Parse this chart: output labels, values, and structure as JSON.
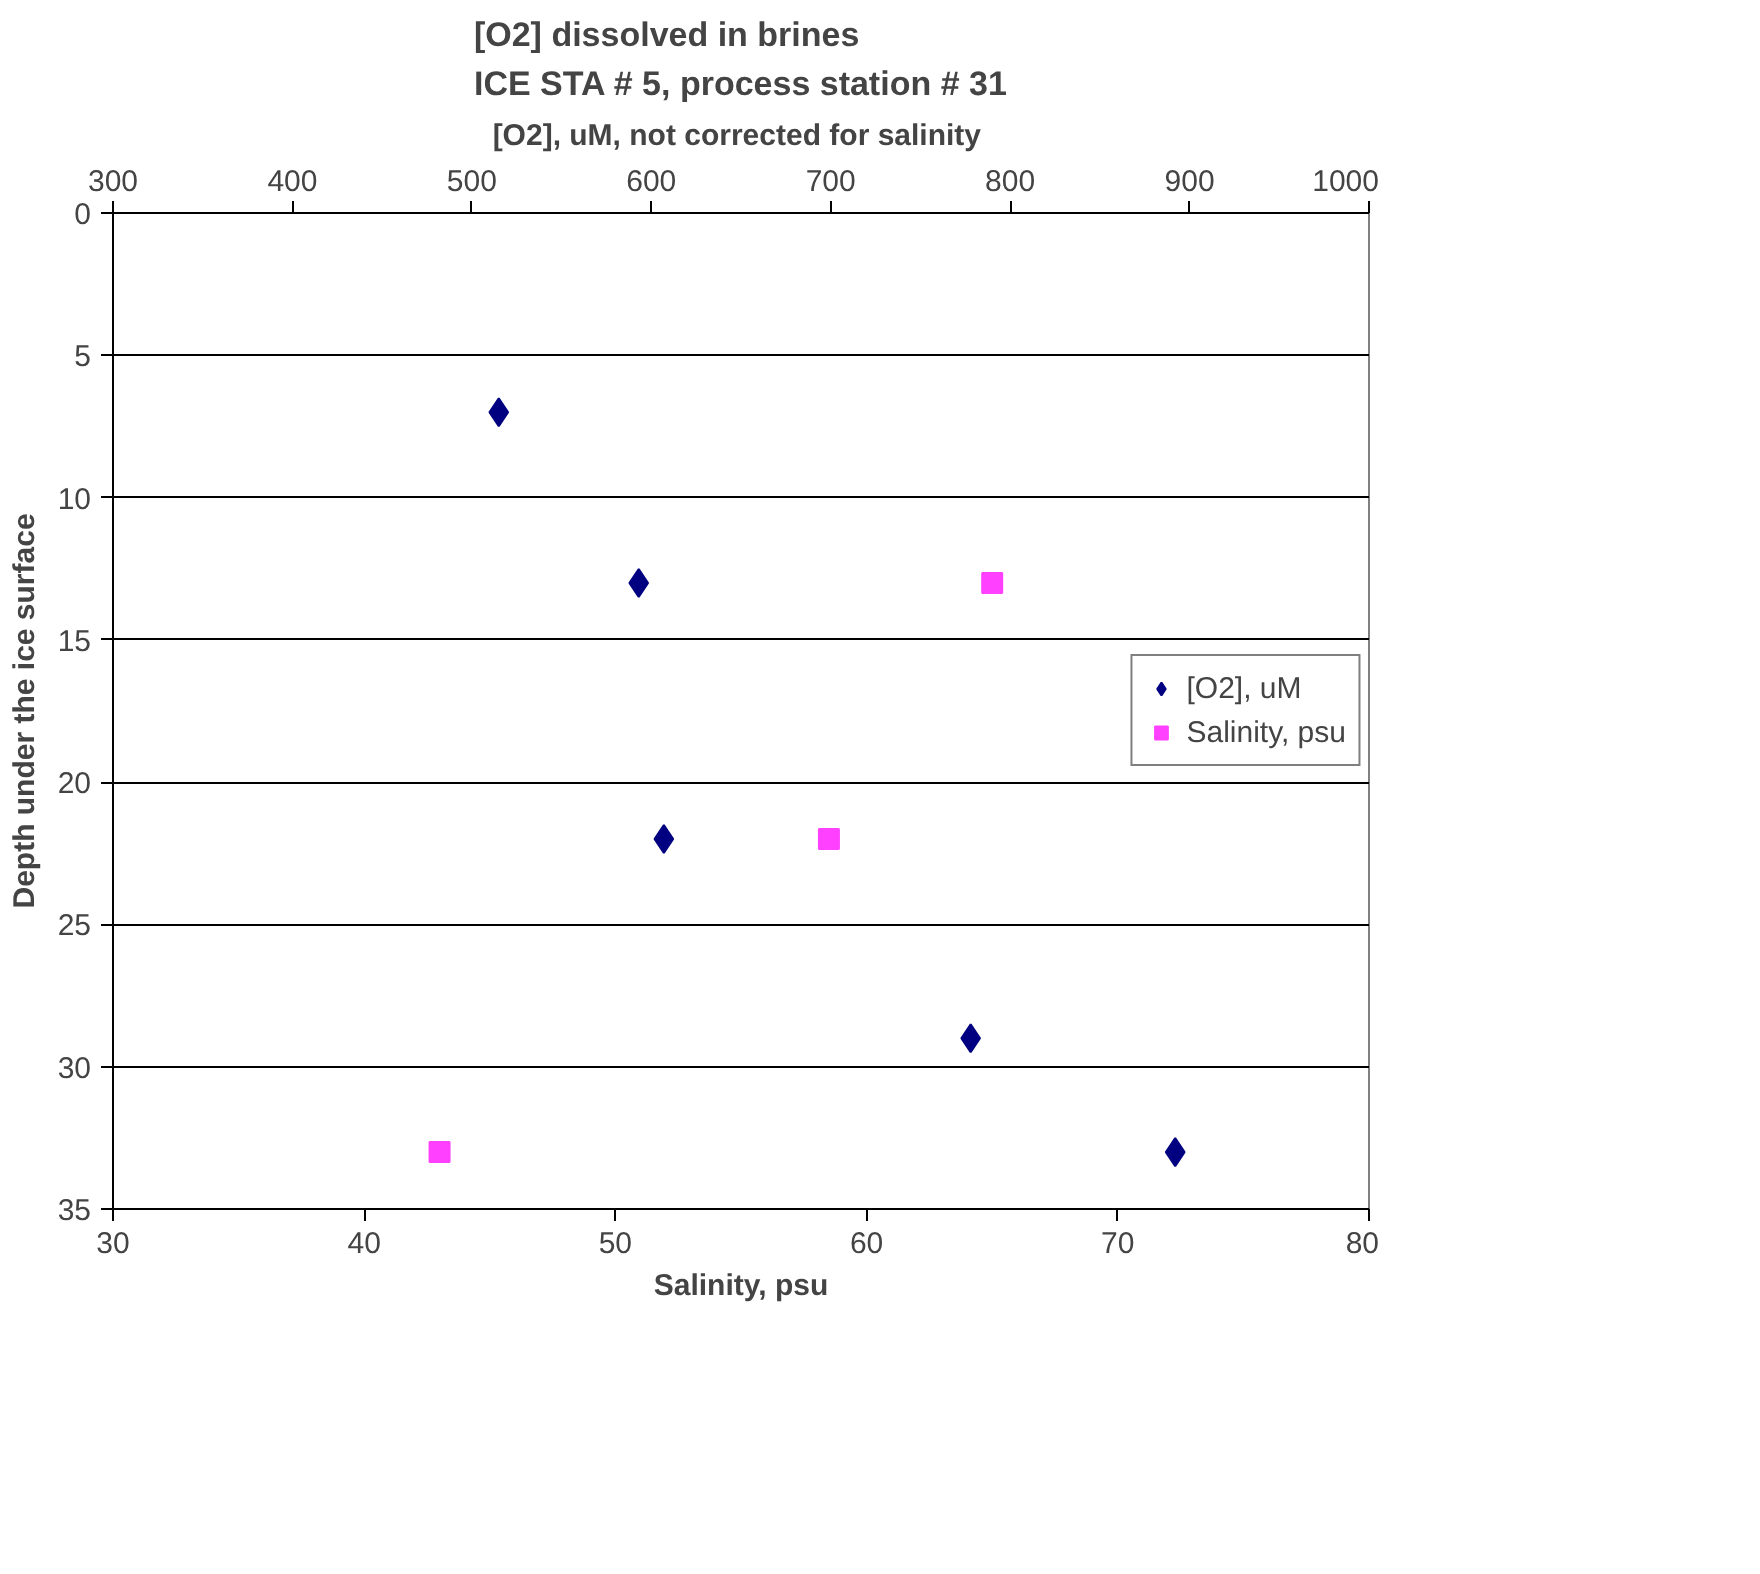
{
  "chart_data": {
    "type": "scatter",
    "title": "[O2] dissolved in brines\nICE STA # 5, process station # 31",
    "xlabel": "Salinity, psu",
    "x2label": "[O2], uM,  not corrected for salinity",
    "ylabel": "Depth under the ice surface",
    "xlim": [
      30,
      80
    ],
    "xticks": [
      30,
      40,
      50,
      60,
      70,
      80
    ],
    "x2lim": [
      300,
      1000
    ],
    "x2ticks": [
      300,
      400,
      500,
      600,
      700,
      800,
      900,
      1000
    ],
    "ylim": [
      35,
      0
    ],
    "yticks": [
      0,
      5,
      10,
      15,
      20,
      25,
      30,
      35
    ],
    "grid": "y",
    "legend": "right",
    "series": [
      {
        "name": "[O2], uM",
        "color": "#000080",
        "marker": "diamond",
        "axis": "x2",
        "x": [
          515,
          593,
          607,
          778,
          892
        ],
        "values": [
          7,
          13,
          22,
          29,
          33
        ]
      },
      {
        "name": "Salinity, psu",
        "color": "#ff40ff",
        "marker": "square",
        "x": [
          65.0,
          58.5,
          43.0
        ],
        "values": [
          13,
          22,
          33
        ]
      }
    ]
  }
}
